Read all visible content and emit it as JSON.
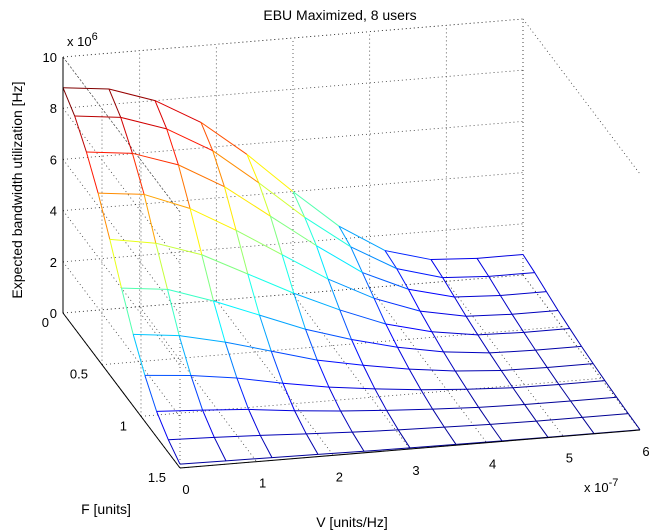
{
  "chart_data": {
    "type": "surface",
    "title": "EBU Maximized, 8 users",
    "xlabel": "V [units/Hz]",
    "ylabel": "F [units]",
    "zlabel": "Expected bandwidth utilization [Hz]",
    "x_multiplier": "x 10",
    "x_exponent": "-7",
    "z_multiplier": "x 10",
    "z_exponent": "6",
    "x_ticks": [
      "0",
      "1",
      "2",
      "3",
      "4",
      "5",
      "6"
    ],
    "y_ticks": [
      "0",
      "0.5",
      "1",
      "1.5"
    ],
    "z_ticks": [
      "0",
      "2",
      "4",
      "6",
      "8",
      "10"
    ],
    "xlim": [
      0,
      6e-07
    ],
    "ylim": [
      0,
      1.5
    ],
    "zlim": [
      0,
      10000000
    ],
    "colormap": "jet",
    "colormap_colors": [
      "#00008f",
      "#0000ff",
      "#0080ff",
      "#00ffff",
      "#80ff80",
      "#ffff00",
      "#ff8000",
      "#ff0000",
      "#800000"
    ],
    "grid": true,
    "x": [
      0,
      6e-08,
      1.2e-07,
      1.8e-07,
      2.4e-07,
      3e-07,
      3.6e-07,
      4.2e-07,
      4.8e-07,
      5.4e-07,
      6e-07
    ],
    "y": [
      0,
      0.15,
      0.3,
      0.45,
      0.6,
      0.75,
      0.9,
      1.05,
      1.2,
      1.35,
      1.5
    ],
    "z": [
      [
        8800000,
        8600000,
        8000000,
        7000000,
        5600000,
        4000000,
        2500000,
        1400000,
        900000,
        800000,
        800000
      ],
      [
        8300000,
        8100000,
        7500000,
        6500000,
        5100000,
        3600000,
        2300000,
        1300000,
        800000,
        700000,
        700000
      ],
      [
        7500000,
        7300000,
        6700000,
        5700000,
        4400000,
        3100000,
        1900000,
        1100000,
        650000,
        560000,
        560000
      ],
      [
        6500000,
        6300000,
        5600000,
        4600000,
        3500000,
        2400000,
        1500000,
        850000,
        500000,
        430000,
        430000
      ],
      [
        5300000,
        5000000,
        4400000,
        3500000,
        2600000,
        1800000,
        1100000,
        650000,
        380000,
        330000,
        330000
      ],
      [
        4000000,
        3800000,
        3200000,
        2500000,
        1800000,
        1250000,
        800000,
        470000,
        280000,
        240000,
        240000
      ],
      [
        2800000,
        2600000,
        2200000,
        1700000,
        1200000,
        850000,
        550000,
        330000,
        200000,
        170000,
        170000
      ],
      [
        1800000,
        1650000,
        1400000,
        1050000,
        750000,
        530000,
        350000,
        220000,
        130000,
        110000,
        110000
      ],
      [
        1000000,
        900000,
        780000,
        580000,
        420000,
        300000,
        200000,
        120000,
        80000,
        70000,
        70000
      ],
      [
        500000,
        440000,
        370000,
        280000,
        200000,
        140000,
        100000,
        60000,
        40000,
        35000,
        35000
      ],
      [
        150000,
        130000,
        110000,
        85000,
        60000,
        42000,
        30000,
        20000,
        12000,
        10000,
        10000
      ]
    ]
  }
}
